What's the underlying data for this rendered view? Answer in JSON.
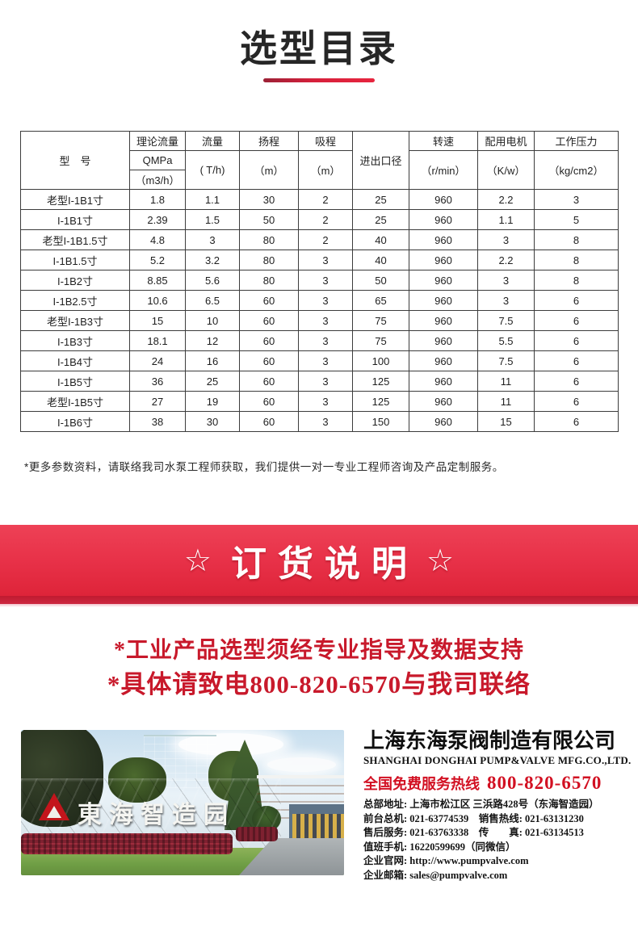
{
  "page": {
    "title": "选型目录",
    "note": "*更多参数资料，请联络我司水泵工程师获取，我们提供一对一专业工程师咨询及产品定制服务。"
  },
  "colors": {
    "accent_red": "#e02a42",
    "banner_red": "#e73047",
    "slogan_red": "#c8192b",
    "hotline_red": "#d21022"
  },
  "table": {
    "header": {
      "model": "型　号",
      "theoretical_flow": {
        "label": "理论流量",
        "unit1": "QMPa",
        "unit2": "（m3/h）"
      },
      "flow": {
        "label": "流量",
        "unit": "( T/h)"
      },
      "head": {
        "label": "扬程",
        "unit": "（m）"
      },
      "suction": {
        "label": "吸程",
        "unit": "（m）"
      },
      "port": "进出口径",
      "speed": {
        "label": "转速",
        "unit": "（r/min）"
      },
      "motor": {
        "label": "配用电机",
        "unit": "（K/w）"
      },
      "pressure": {
        "label": "工作压力",
        "unit": "（kg/cm2）"
      }
    },
    "rows": [
      [
        "老型I-1B1寸",
        "1.8",
        "1.1",
        "30",
        "2",
        "25",
        "960",
        "2.2",
        "3"
      ],
      [
        "I-1B1寸",
        "2.39",
        "1.5",
        "50",
        "2",
        "25",
        "960",
        "1.1",
        "5"
      ],
      [
        "老型I-1B1.5寸",
        "4.8",
        "3",
        "80",
        "2",
        "40",
        "960",
        "3",
        "8"
      ],
      [
        "I-1B1.5寸",
        "5.2",
        "3.2",
        "80",
        "3",
        "40",
        "960",
        "2.2",
        "8"
      ],
      [
        "I-1B2寸",
        "8.85",
        "5.6",
        "80",
        "3",
        "50",
        "960",
        "3",
        "8"
      ],
      [
        "I-1B2.5寸",
        "10.6",
        "6.5",
        "60",
        "3",
        "65",
        "960",
        "3",
        "6"
      ],
      [
        "老型I-1B3寸",
        "15",
        "10",
        "60",
        "3",
        "75",
        "960",
        "7.5",
        "6"
      ],
      [
        "I-1B3寸",
        "18.1",
        "12",
        "60",
        "3",
        "75",
        "960",
        "5.5",
        "6"
      ],
      [
        "I-1B4寸",
        "24",
        "16",
        "60",
        "3",
        "100",
        "960",
        "7.5",
        "6"
      ],
      [
        "I-1B5寸",
        "36",
        "25",
        "60",
        "3",
        "125",
        "960",
        "11",
        "6"
      ],
      [
        "老型I-1B5寸",
        "27",
        "19",
        "60",
        "3",
        "125",
        "960",
        "11",
        "6"
      ],
      [
        "I-1B6寸",
        "38",
        "30",
        "60",
        "3",
        "150",
        "960",
        "15",
        "6"
      ]
    ]
  },
  "banner": {
    "star": "☆",
    "title": "订货说明"
  },
  "slogans": {
    "line1": "*工业产品选型须经专业指导及数据支持",
    "line2": "*具体请致电800-820-6570与我司联络"
  },
  "photo": {
    "sign_text": "東海智造园"
  },
  "company": {
    "name_cn": "上海东海泵阀制造有限公司",
    "name_en": "SHANGHAI DONGHAI PUMP&VALVE MFG.CO.,LTD.",
    "hotline_label": "全国免费服务热线",
    "hotline_number": "800-820-6570",
    "contacts": [
      "总部地址: 上海市松江区 三浜路428号（东海智造园）",
      "前台总机: 021-63774539　销售热线: 021-63131230",
      "售后服务: 021-63763338　传　　真: 021-63134513",
      "值班手机: 16220599699（同微信）",
      "企业官网: http://www.pumpvalve.com",
      "企业邮箱: sales@pumpvalve.com"
    ]
  }
}
